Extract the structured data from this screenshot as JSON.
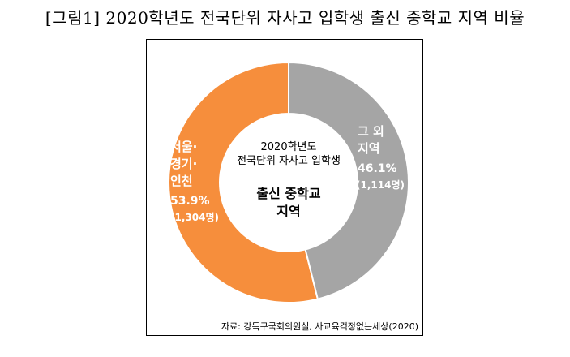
{
  "figure_title": "[그림1] 2020학년도 전국단위 자사고 입학생 출신 중학교 지역 비율",
  "source_note": "자료: 강득구국회의원실, 사교육걱정없는세상(2020)",
  "colors": {
    "seoul": "#f68e3c",
    "other": "#a5a5a5"
  },
  "chart_data": {
    "type": "pie",
    "title": "",
    "center_label_top": [
      "2020학년도",
      "전국단위 자사고 입학생"
    ],
    "center_label_bottom": [
      "출신 중학교",
      "지역"
    ],
    "series": [
      {
        "name": "서울·경기·인천",
        "label_lines": [
          "서울·",
          "경기·",
          "인천"
        ],
        "percent": 53.9,
        "percent_label": "53.9%",
        "count": 1304,
        "count_label": "(1,304명)"
      },
      {
        "name": "그 외 지역",
        "label_lines": [
          "그 외",
          "지역"
        ],
        "percent": 46.1,
        "percent_label": "46.1%",
        "count": 1114,
        "count_label": "(1,114명)"
      }
    ]
  }
}
